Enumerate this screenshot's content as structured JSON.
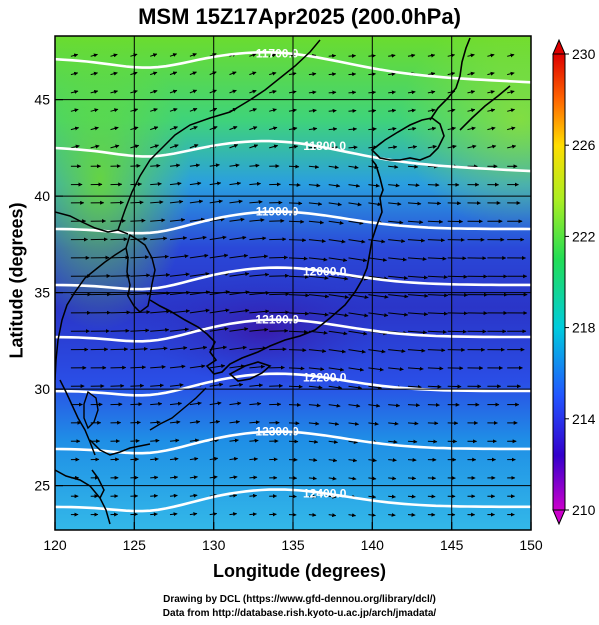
{
  "title": "MSM 15Z17Apr2025 (200.0hPa)",
  "xlabel": "Longitude (degrees)",
  "ylabel": "Latitude  (degrees)",
  "credits": {
    "line1": "Drawing by DCL (https://www.gfd-dennou.org/library/dcl/)",
    "line2": "Data from http://database.rish.kyoto-u.ac.jp/arch/jmadata/"
  },
  "map": {
    "lon_range": [
      120,
      150
    ],
    "lat_range": [
      22.4,
      48
    ],
    "lon_ticks": [
      "120",
      "125",
      "130",
      "135",
      "140",
      "145",
      "150"
    ],
    "lat_ticks": [
      "25",
      "30",
      "35",
      "40",
      "45"
    ],
    "background": "#ffffff"
  },
  "colorbar": {
    "min": 210,
    "max": 230,
    "labels": [
      "230",
      "226",
      "222",
      "218",
      "214",
      "210"
    ],
    "colors": [
      "#cc00cc",
      "#3300cc",
      "#2255ff",
      "#00ccdd",
      "#22dd55",
      "#aaee22",
      "#ffdd00",
      "#ff6600",
      "#dd0000"
    ]
  },
  "chart_data": {
    "type": "heatmap",
    "field": "temperature",
    "contours": [
      {
        "label": "11700.0"
      },
      {
        "label": "11800.0"
      },
      {
        "label": "11900.0"
      },
      {
        "label": "12000.0"
      },
      {
        "label": "12100.0"
      },
      {
        "label": "12200.0"
      },
      {
        "label": "12300.0"
      },
      {
        "label": "12400.0"
      }
    ],
    "contour_lat": [
      46.2,
      41.6,
      38.0,
      35.1,
      32.4,
      29.6,
      26.6,
      23.6
    ],
    "wind": "westerly jet, strongest near 33-36N"
  }
}
